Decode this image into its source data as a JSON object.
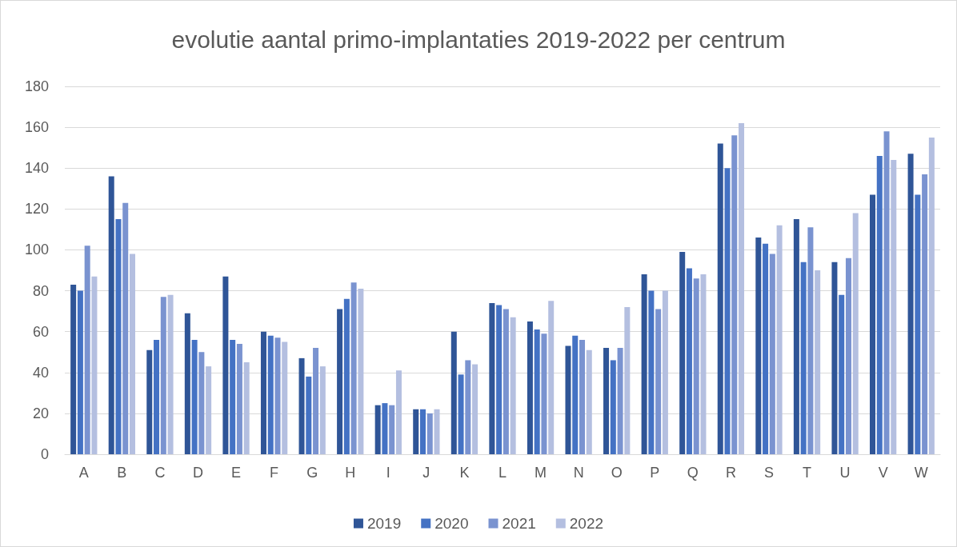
{
  "chart_data": {
    "type": "bar",
    "title": "evolutie aantal primo-implantaties 2019-2022 per centrum",
    "categories": [
      "A",
      "B",
      "C",
      "D",
      "E",
      "F",
      "G",
      "H",
      "I",
      "J",
      "K",
      "L",
      "M",
      "N",
      "O",
      "P",
      "Q",
      "R",
      "S",
      "T",
      "U",
      "V",
      "W"
    ],
    "series": [
      {
        "name": "2019",
        "color": "#2f5597",
        "values": [
          83,
          136,
          51,
          69,
          87,
          60,
          47,
          71,
          24,
          22,
          60,
          74,
          65,
          53,
          52,
          88,
          99,
          152,
          106,
          115,
          94,
          127,
          147
        ]
      },
      {
        "name": "2020",
        "color": "#4472c4",
        "values": [
          80,
          115,
          56,
          56,
          56,
          58,
          38,
          76,
          25,
          22,
          39,
          73,
          61,
          58,
          46,
          80,
          91,
          140,
          103,
          94,
          78,
          146,
          127
        ]
      },
      {
        "name": "2021",
        "color": "#7a93d0",
        "values": [
          102,
          123,
          77,
          50,
          54,
          57,
          52,
          84,
          24,
          20,
          46,
          71,
          59,
          56,
          52,
          71,
          86,
          156,
          98,
          111,
          96,
          158,
          137
        ]
      },
      {
        "name": "2022",
        "color": "#b4bfe0",
        "values": [
          87,
          98,
          78,
          43,
          45,
          55,
          43,
          81,
          41,
          22,
          44,
          67,
          75,
          51,
          72,
          80,
          88,
          162,
          112,
          90,
          118,
          144,
          155
        ]
      }
    ],
    "ylim": [
      0,
      180
    ],
    "yticks": [
      0,
      20,
      40,
      60,
      80,
      100,
      120,
      140,
      160,
      180
    ],
    "grid": "y",
    "legend": "bottom"
  }
}
